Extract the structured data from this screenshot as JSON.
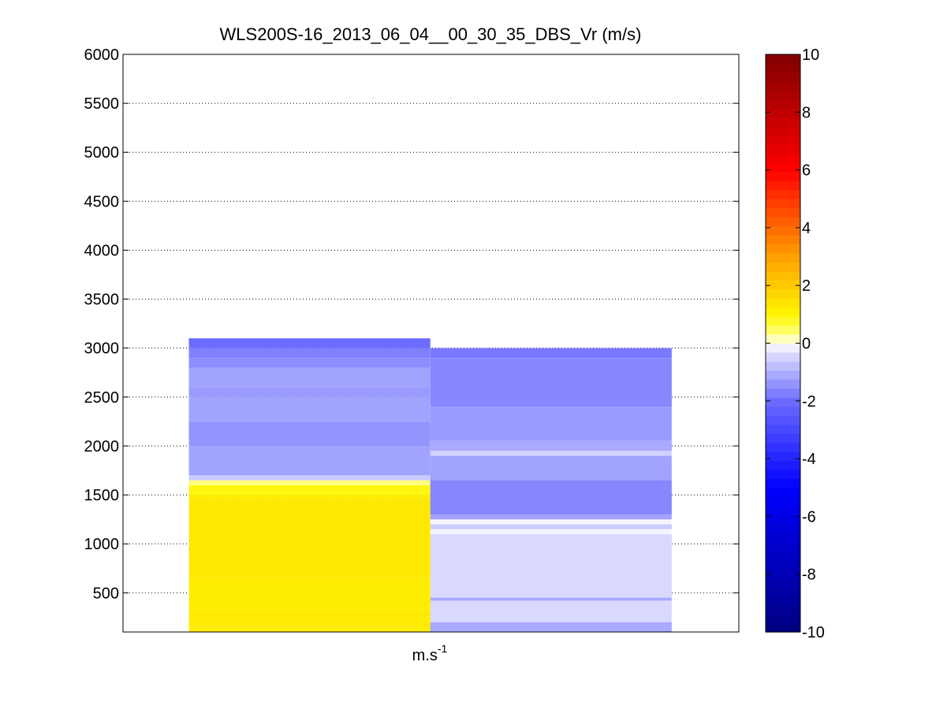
{
  "chart_data": {
    "type": "heatmap",
    "title": "WLS200S-16_2013_06_04__00_30_35_DBS_Vr (m/s)",
    "xlabel": "m.s",
    "xlabel_superscript": "-1",
    "ylabel": "",
    "ylim": [
      100,
      6000
    ],
    "yticks": [
      500,
      1000,
      1500,
      2000,
      2500,
      3000,
      3500,
      4000,
      4500,
      5000,
      5500,
      6000
    ],
    "grid": "horizontal dotted",
    "colorbar": {
      "position": "right",
      "range": [
        -10,
        10
      ],
      "ticks": [
        -10,
        -8,
        -6,
        -4,
        -2,
        0,
        2,
        4,
        6,
        8,
        10
      ],
      "colormap": "blue-white-yellow-red"
    },
    "columns": [
      {
        "cells": [
          {
            "y0": 100,
            "y1": 150,
            "v": 1.2
          },
          {
            "y0": 150,
            "y1": 200,
            "v": 1.3
          },
          {
            "y0": 200,
            "y1": 250,
            "v": 1.2
          },
          {
            "y0": 250,
            "y1": 300,
            "v": 1.3
          },
          {
            "y0": 300,
            "y1": 650,
            "v": 1.2
          },
          {
            "y0": 650,
            "y1": 1450,
            "v": 1.3
          },
          {
            "y0": 1450,
            "y1": 1500,
            "v": 1.2
          },
          {
            "y0": 1500,
            "y1": 1600,
            "v": 0.9
          },
          {
            "y0": 1600,
            "y1": 1650,
            "v": 0.3
          },
          {
            "y0": 1650,
            "y1": 1700,
            "v": -0.6
          },
          {
            "y0": 1700,
            "y1": 2000,
            "v": -1.2
          },
          {
            "y0": 2000,
            "y1": 2250,
            "v": -1.4
          },
          {
            "y0": 2250,
            "y1": 2500,
            "v": -1.2
          },
          {
            "y0": 2500,
            "y1": 2600,
            "v": -1.3
          },
          {
            "y0": 2600,
            "y1": 2800,
            "v": -1.2
          },
          {
            "y0": 2800,
            "y1": 2900,
            "v": -1.5
          },
          {
            "y0": 2900,
            "y1": 3000,
            "v": -1.7
          },
          {
            "y0": 3000,
            "y1": 3100,
            "v": -2.0
          }
        ]
      },
      {
        "cells": [
          {
            "y0": 100,
            "y1": 200,
            "v": -1.1
          },
          {
            "y0": 200,
            "y1": 420,
            "v": -0.4
          },
          {
            "y0": 420,
            "y1": 450,
            "v": -1.1
          },
          {
            "y0": 450,
            "y1": 1100,
            "v": -0.4
          },
          {
            "y0": 1100,
            "y1": 1150,
            "v": -0.1
          },
          {
            "y0": 1150,
            "y1": 1200,
            "v": -0.6
          },
          {
            "y0": 1200,
            "y1": 1250,
            "v": -0.1
          },
          {
            "y0": 1250,
            "y1": 1300,
            "v": -1.2
          },
          {
            "y0": 1300,
            "y1": 1650,
            "v": -1.6
          },
          {
            "y0": 1650,
            "y1": 1900,
            "v": -1.2
          },
          {
            "y0": 1900,
            "y1": 1950,
            "v": -0.5
          },
          {
            "y0": 1950,
            "y1": 2050,
            "v": -1.1
          },
          {
            "y0": 2050,
            "y1": 2400,
            "v": -1.3
          },
          {
            "y0": 2400,
            "y1": 2900,
            "v": -1.6
          },
          {
            "y0": 2900,
            "y1": 3000,
            "v": -1.8
          }
        ]
      }
    ]
  }
}
